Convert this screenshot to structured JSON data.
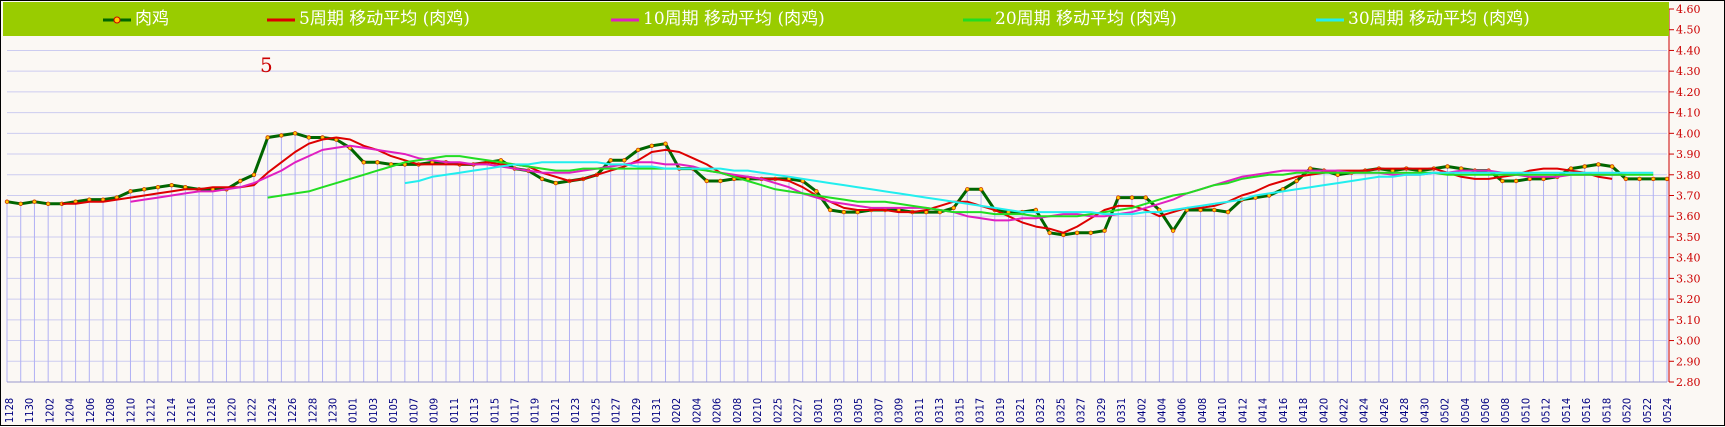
{
  "chart_data": {
    "type": "line",
    "annotation": "5",
    "legend": [
      {
        "name": "肉鸡",
        "color": "#006600",
        "marker": true
      },
      {
        "name": "5周期  移动平均 (肉鸡)",
        "color": "#dd0000"
      },
      {
        "name": "10周期  移动平均 (肉鸡)",
        "color": "#e020c0"
      },
      {
        "name": "20周期  移动平均 (肉鸡)",
        "color": "#22dd22"
      },
      {
        "name": "30周期  移动平均 (肉鸡)",
        "color": "#22eeee"
      }
    ],
    "ylim": [
      2.8,
      4.6
    ],
    "yticks": [
      "4.60",
      "4.50",
      "4.40",
      "4.30",
      "4.20",
      "4.10",
      "4.00",
      "3.90",
      "3.80",
      "3.70",
      "3.60",
      "3.50",
      "3.40",
      "3.30",
      "3.20",
      "3.10",
      "3.00",
      "2.90",
      "2.80"
    ],
    "xticks": [
      "1128",
      "1130",
      "1202",
      "1204",
      "1206",
      "1208",
      "1210",
      "1212",
      "1214",
      "1216",
      "1218",
      "1220",
      "1222",
      "1224",
      "1226",
      "1228",
      "1230",
      "0101",
      "0103",
      "0105",
      "0107",
      "0109",
      "0111",
      "0113",
      "0115",
      "0117",
      "0119",
      "0121",
      "0123",
      "0125",
      "0127",
      "0129",
      "0131",
      "0202",
      "0204",
      "0206",
      "0208",
      "0210",
      "0225",
      "0227",
      "0301",
      "0303",
      "0305",
      "0307",
      "0309",
      "0311",
      "0313",
      "0315",
      "0317",
      "0319",
      "0321",
      "0323",
      "0325",
      "0327",
      "0329",
      "0331",
      "0402",
      "0404",
      "0406",
      "0408",
      "0410",
      "0412",
      "0414",
      "0416",
      "0418",
      "0420",
      "0422",
      "0424",
      "0426",
      "0428",
      "0430",
      "0502",
      "0504",
      "0506",
      "0508",
      "0510",
      "0512",
      "0514",
      "0516",
      "0518",
      "0520",
      "0522",
      "0524"
    ],
    "series": [
      {
        "name": "肉鸡",
        "values": [
          3.67,
          3.66,
          3.67,
          3.66,
          3.66,
          3.67,
          3.68,
          3.68,
          3.69,
          3.72,
          3.73,
          3.74,
          3.75,
          3.74,
          3.73,
          3.73,
          3.73,
          3.77,
          3.8,
          3.98,
          3.99,
          4.0,
          3.98,
          3.98,
          3.97,
          3.93,
          3.86,
          3.86,
          3.85,
          3.85,
          3.85,
          3.86,
          3.86,
          3.85,
          3.85,
          3.86,
          3.87,
          3.83,
          3.82,
          3.78,
          3.76,
          3.77,
          3.78,
          3.8,
          3.87,
          3.87,
          3.92,
          3.94,
          3.95,
          3.83,
          3.83,
          3.77,
          3.77,
          3.78,
          3.78,
          3.78,
          3.78,
          3.78,
          3.77,
          3.72,
          3.63,
          3.62,
          3.62,
          3.63,
          3.63,
          3.63,
          3.62,
          3.62,
          3.62,
          3.64,
          3.73,
          3.73,
          3.63,
          3.62,
          3.62,
          3.63,
          3.52,
          3.51,
          3.52,
          3.52,
          3.53,
          3.69,
          3.69,
          3.69,
          3.63,
          3.53,
          3.63,
          3.63,
          3.63,
          3.62,
          3.68,
          3.69,
          3.7,
          3.73,
          3.77,
          3.83,
          3.82,
          3.8,
          3.81,
          3.82,
          3.83,
          3.82,
          3.83,
          3.82,
          3.83,
          3.84,
          3.83,
          3.82,
          3.82,
          3.77,
          3.77,
          3.78,
          3.78,
          3.79,
          3.83,
          3.84,
          3.85,
          3.84,
          3.78,
          3.78,
          3.78,
          3.78
        ]
      },
      {
        "name": "5周期  移动平均 (肉鸡)",
        "start": 4,
        "values": [
          3.66,
          3.66,
          3.67,
          3.67,
          3.68,
          3.69,
          3.7,
          3.71,
          3.72,
          3.73,
          3.73,
          3.74,
          3.74,
          3.74,
          3.75,
          3.81,
          3.86,
          3.91,
          3.95,
          3.97,
          3.98,
          3.97,
          3.94,
          3.92,
          3.89,
          3.87,
          3.85,
          3.85,
          3.85,
          3.85,
          3.85,
          3.86,
          3.85,
          3.85,
          3.84,
          3.81,
          3.79,
          3.77,
          3.78,
          3.8,
          3.82,
          3.84,
          3.87,
          3.91,
          3.92,
          3.91,
          3.88,
          3.85,
          3.81,
          3.79,
          3.79,
          3.78,
          3.78,
          3.77,
          3.74,
          3.7,
          3.67,
          3.64,
          3.63,
          3.63,
          3.63,
          3.62,
          3.62,
          3.63,
          3.65,
          3.67,
          3.67,
          3.65,
          3.63,
          3.6,
          3.57,
          3.55,
          3.54,
          3.52,
          3.55,
          3.59,
          3.63,
          3.65,
          3.65,
          3.63,
          3.6,
          3.62,
          3.64,
          3.64,
          3.65,
          3.67,
          3.7,
          3.72,
          3.75,
          3.77,
          3.79,
          3.8,
          3.81,
          3.82,
          3.82,
          3.82,
          3.83,
          3.83,
          3.83,
          3.83,
          3.83,
          3.81,
          3.79,
          3.78,
          3.78,
          3.79,
          3.8,
          3.82,
          3.83,
          3.83,
          3.82,
          3.81,
          3.79,
          3.78
        ]
      },
      {
        "name": "10周期  移动平均 (肉鸡)",
        "start": 9,
        "values": [
          3.67,
          3.68,
          3.69,
          3.7,
          3.71,
          3.72,
          3.72,
          3.73,
          3.74,
          3.76,
          3.79,
          3.82,
          3.86,
          3.89,
          3.92,
          3.93,
          3.94,
          3.93,
          3.92,
          3.91,
          3.9,
          3.88,
          3.87,
          3.86,
          3.86,
          3.85,
          3.85,
          3.84,
          3.83,
          3.82,
          3.81,
          3.81,
          3.81,
          3.82,
          3.83,
          3.84,
          3.85,
          3.86,
          3.86,
          3.85,
          3.85,
          3.84,
          3.82,
          3.81,
          3.8,
          3.79,
          3.78,
          3.76,
          3.74,
          3.71,
          3.69,
          3.67,
          3.66,
          3.65,
          3.64,
          3.64,
          3.64,
          3.64,
          3.64,
          3.63,
          3.62,
          3.6,
          3.59,
          3.58,
          3.58,
          3.59,
          3.59,
          3.6,
          3.61,
          3.61,
          3.6,
          3.6,
          3.61,
          3.62,
          3.64,
          3.66,
          3.68,
          3.71,
          3.73,
          3.75,
          3.77,
          3.79,
          3.8,
          3.81,
          3.82,
          3.82,
          3.82,
          3.82,
          3.82,
          3.81,
          3.81,
          3.81,
          3.8,
          3.8,
          3.8,
          3.81,
          3.81,
          3.82,
          3.82,
          3.82,
          3.81,
          3.8,
          3.79,
          3.79,
          3.79,
          3.8,
          3.8,
          3.8,
          3.8,
          3.8
        ]
      },
      {
        "name": "20周期  移动平均 (肉鸡)",
        "start": 19,
        "values": [
          3.69,
          3.7,
          3.71,
          3.72,
          3.74,
          3.76,
          3.78,
          3.8,
          3.82,
          3.84,
          3.86,
          3.87,
          3.88,
          3.89,
          3.89,
          3.88,
          3.87,
          3.86,
          3.85,
          3.84,
          3.83,
          3.82,
          3.82,
          3.83,
          3.83,
          3.83,
          3.83,
          3.83,
          3.83,
          3.83,
          3.83,
          3.83,
          3.82,
          3.81,
          3.79,
          3.77,
          3.75,
          3.73,
          3.72,
          3.71,
          3.7,
          3.69,
          3.68,
          3.67,
          3.67,
          3.67,
          3.66,
          3.65,
          3.64,
          3.63,
          3.62,
          3.62,
          3.62,
          3.61,
          3.61,
          3.61,
          3.6,
          3.6,
          3.6,
          3.6,
          3.61,
          3.62,
          3.63,
          3.64,
          3.66,
          3.68,
          3.7,
          3.71,
          3.73,
          3.75,
          3.76,
          3.78,
          3.79,
          3.8,
          3.8,
          3.81,
          3.81,
          3.81,
          3.81,
          3.81,
          3.81,
          3.81,
          3.81,
          3.81,
          3.81,
          3.81,
          3.8,
          3.8,
          3.8,
          3.8,
          3.8,
          3.8,
          3.8,
          3.8,
          3.8,
          3.8,
          3.8,
          3.8,
          3.8,
          3.8,
          3.8,
          3.8
        ]
      },
      {
        "name": "30周期  移动平均 (肉鸡)",
        "start": 29,
        "values": [
          3.76,
          3.77,
          3.79,
          3.8,
          3.81,
          3.82,
          3.83,
          3.84,
          3.85,
          3.85,
          3.86,
          3.86,
          3.86,
          3.86,
          3.86,
          3.85,
          3.85,
          3.84,
          3.84,
          3.83,
          3.83,
          3.83,
          3.83,
          3.83,
          3.82,
          3.82,
          3.81,
          3.8,
          3.79,
          3.78,
          3.77,
          3.76,
          3.75,
          3.74,
          3.73,
          3.72,
          3.71,
          3.7,
          3.69,
          3.68,
          3.67,
          3.66,
          3.65,
          3.64,
          3.63,
          3.62,
          3.62,
          3.62,
          3.62,
          3.62,
          3.62,
          3.61,
          3.61,
          3.61,
          3.62,
          3.62,
          3.63,
          3.64,
          3.65,
          3.66,
          3.67,
          3.68,
          3.7,
          3.71,
          3.72,
          3.73,
          3.74,
          3.75,
          3.76,
          3.77,
          3.78,
          3.79,
          3.79,
          3.8,
          3.8,
          3.81,
          3.81,
          3.81,
          3.81,
          3.81,
          3.81,
          3.81,
          3.81,
          3.81,
          3.81,
          3.81,
          3.81,
          3.81,
          3.81,
          3.81,
          3.81,
          3.81
        ]
      }
    ]
  }
}
